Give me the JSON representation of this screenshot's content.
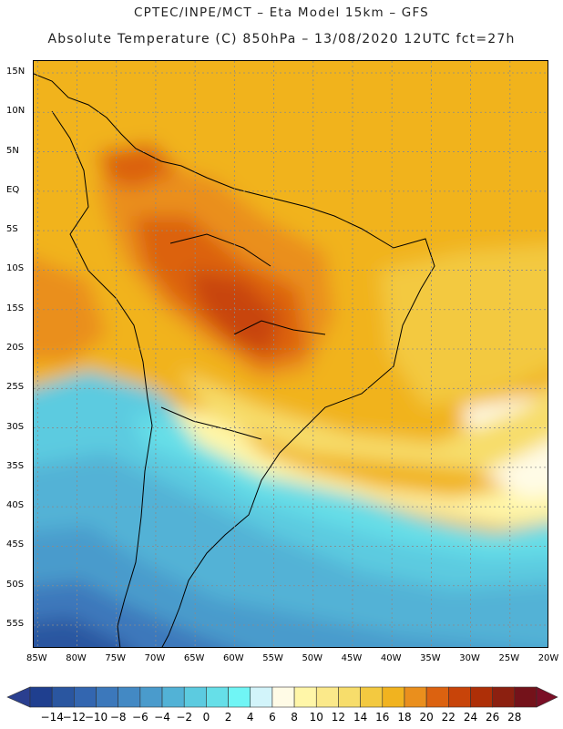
{
  "header": {
    "line1": "CPTEC/INPE/MCT –  Eta Model 15km – GFS",
    "line2": "Absolute Temperature (C) 850hPa – 13/08/2020 12UTC fct=27h"
  },
  "map": {
    "lat_labels": [
      "15N",
      "10N",
      "5N",
      "EQ",
      "5S",
      "10S",
      "15S",
      "20S",
      "25S",
      "30S",
      "35S",
      "40S",
      "45S",
      "50S",
      "55S"
    ],
    "lat_values": [
      15,
      10,
      5,
      0,
      -5,
      -10,
      -15,
      -20,
      -25,
      -30,
      -35,
      -40,
      -45,
      -50,
      -55
    ],
    "lon_labels": [
      "85W",
      "80W",
      "75W",
      "70W",
      "65W",
      "60W",
      "55W",
      "50W",
      "45W",
      "40W",
      "35W",
      "30W",
      "25W",
      "20W"
    ],
    "lon_values": [
      -85,
      -80,
      -75,
      -70,
      -65,
      -60,
      -55,
      -50,
      -45,
      -40,
      -35,
      -30,
      -25,
      -20
    ],
    "lon_range": [
      -85.5,
      -20
    ],
    "lat_range": [
      -58,
      16.5
    ],
    "grid": true
  },
  "colorbar": {
    "labels": [
      "-14",
      "-12",
      "-10",
      "-8",
      "-6",
      "-4",
      "-2",
      "0",
      "2",
      "4",
      "6",
      "8",
      "10",
      "12",
      "14",
      "16",
      "18",
      "20",
      "22",
      "24",
      "26",
      "28"
    ],
    "colors": [
      "#1f3f8f",
      "#2a56a0",
      "#3366b0",
      "#3c78bb",
      "#4389c4",
      "#4a9bcc",
      "#52b2d6",
      "#5ccbe0",
      "#66dfe8",
      "#70f5f5",
      "#d2f4fa",
      "#fffbe6",
      "#fff6a8",
      "#fbe98a",
      "#f7dd6b",
      "#f3c940",
      "#f1b31f",
      "#ea8f1d",
      "#dc6210",
      "#c84409",
      "#ae2f07",
      "#8c2010",
      "#74121a"
    ]
  }
}
